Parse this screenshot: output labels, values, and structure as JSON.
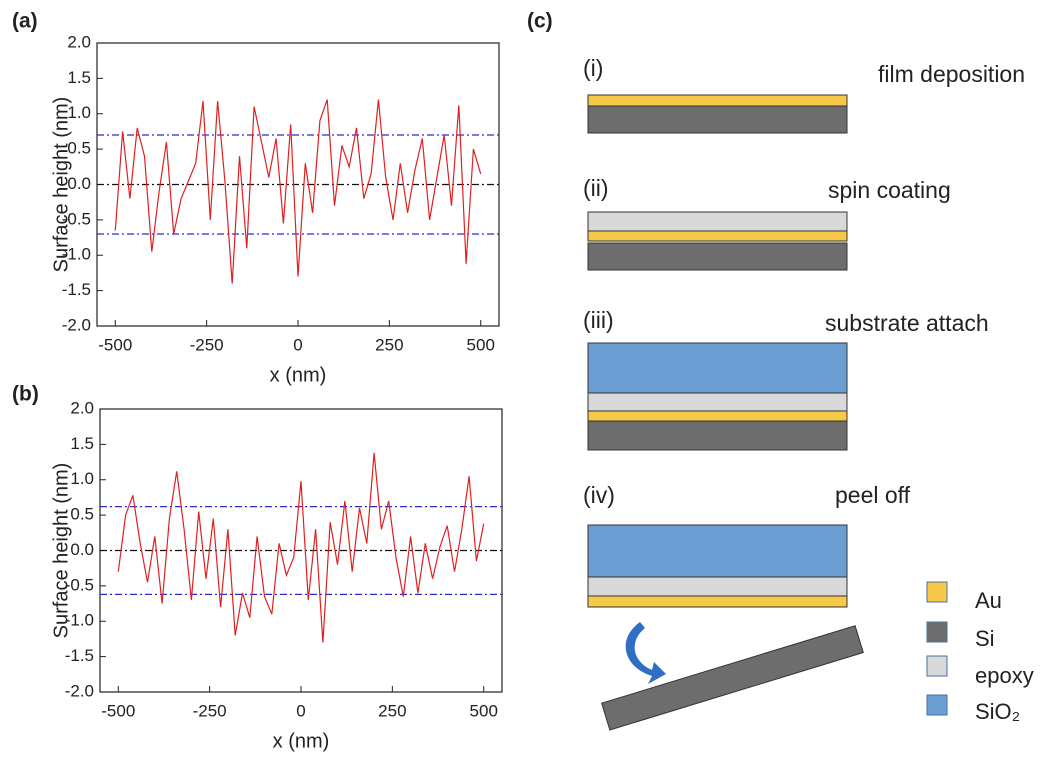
{
  "chart_data": [
    {
      "type": "line",
      "label": "(a)",
      "x_label": "x (nm)",
      "y_label": "Surface height (nm)",
      "x": [
        -500,
        -480,
        -460,
        -440,
        -420,
        -400,
        -380,
        -360,
        -340,
        -320,
        -300,
        -280,
        -260,
        -240,
        -220,
        -200,
        -180,
        -160,
        -140,
        -120,
        -100,
        -80,
        -60,
        -40,
        -20,
        0,
        20,
        40,
        60,
        80,
        100,
        120,
        140,
        160,
        180,
        200,
        220,
        240,
        260,
        280,
        300,
        320,
        340,
        360,
        380,
        400,
        420,
        440,
        460,
        480,
        500
      ],
      "series": [
        {
          "color": "#e02020",
          "values": [
            -0.65,
            0.75,
            -0.2,
            0.8,
            0.4,
            -0.95,
            -0.1,
            0.6,
            -0.7,
            -0.2,
            0.05,
            0.3,
            1.18,
            -0.5,
            1.18,
            0.05,
            -1.4,
            0.4,
            -0.9,
            1.1,
            0.6,
            0.1,
            0.65,
            -0.55,
            0.85,
            -1.3,
            0.3,
            -0.4,
            0.9,
            1.2,
            -0.3,
            0.55,
            0.25,
            0.8,
            -0.2,
            0.15,
            1.2,
            0.1,
            -0.5,
            0.3,
            -0.4,
            0.2,
            0.65,
            -0.5,
            0.1,
            0.7,
            -0.3,
            1.12,
            -1.12,
            0.5,
            0.15
          ]
        }
      ],
      "reference_lines": [
        {
          "value": 0.7,
          "color": "#2a2ad0"
        },
        {
          "value": 0,
          "color": "#111111"
        },
        {
          "value": -0.7,
          "color": "#2a2ad0"
        }
      ],
      "xlim": [
        -550,
        550
      ],
      "xticks": [
        -500,
        -250,
        0,
        250,
        500
      ],
      "ylim": [
        -2,
        2
      ],
      "yticks": [
        {
          "value": -2,
          "label": "-2.0"
        },
        -1.5,
        {
          "value": -1,
          "label": "-1.0"
        },
        -0.5,
        {
          "value": 0,
          "label": "0.0"
        },
        0.5,
        {
          "value": 1,
          "label": "1.0"
        },
        1.5,
        {
          "value": 2,
          "label": "2.0"
        }
      ]
    },
    {
      "type": "line",
      "label": "(b)",
      "x_label": "x (nm)",
      "y_label": "Surface height (nm)",
      "x": [
        -500,
        -480,
        -460,
        -440,
        -420,
        -400,
        -380,
        -360,
        -340,
        -320,
        -300,
        -280,
        -260,
        -240,
        -220,
        -200,
        -180,
        -160,
        -140,
        -120,
        -100,
        -80,
        -60,
        -40,
        -20,
        0,
        20,
        40,
        60,
        80,
        100,
        120,
        140,
        160,
        180,
        200,
        220,
        240,
        260,
        280,
        300,
        320,
        340,
        360,
        380,
        400,
        420,
        440,
        460,
        480,
        500
      ],
      "series": [
        {
          "color": "#e02020",
          "values": [
            -0.3,
            0.5,
            0.78,
            0.1,
            -0.45,
            0.2,
            -0.75,
            0.45,
            1.12,
            0.3,
            -0.7,
            0.55,
            -0.4,
            0.45,
            -0.8,
            0.3,
            -1.2,
            -0.6,
            -0.95,
            0.2,
            -0.65,
            -0.9,
            0.1,
            -0.35,
            -0.1,
            0.98,
            -0.7,
            0.3,
            -1.3,
            0.4,
            -0.2,
            0.7,
            -0.3,
            0.6,
            0.1,
            1.38,
            0.3,
            0.7,
            -0.1,
            -0.65,
            0.2,
            -0.6,
            0.1,
            -0.4,
            0.05,
            0.35,
            -0.3,
            0.3,
            1.05,
            -0.15,
            0.38
          ]
        }
      ],
      "reference_lines": [
        {
          "value": 0.62,
          "color": "#2a2ad0"
        },
        {
          "value": 0,
          "color": "#111111"
        },
        {
          "value": -0.62,
          "color": "#2a2ad0"
        }
      ],
      "xlim": [
        -550,
        550
      ],
      "xticks": [
        -500,
        -250,
        0,
        250,
        500
      ],
      "ylim": [
        -2,
        2
      ],
      "yticks": [
        {
          "value": -2,
          "label": "-2.0"
        },
        -1.5,
        {
          "value": -1,
          "label": "-1.0"
        },
        -0.5,
        {
          "value": 0,
          "label": "0.0"
        },
        0.5,
        {
          "value": 1,
          "label": "1.0"
        },
        1.5,
        {
          "value": 2,
          "label": "2.0"
        }
      ]
    }
  ],
  "diagram": {
    "label": "(c)",
    "steps": [
      {
        "number": "(i)",
        "caption": "film deposition"
      },
      {
        "number": "(ii)",
        "caption": "spin coating"
      },
      {
        "number": "(iii)",
        "caption": "substrate attach"
      },
      {
        "number": "(iv)",
        "caption": "peel off"
      }
    ],
    "legend": [
      "Au",
      "Si",
      "epoxy",
      "SiO₂"
    ]
  }
}
